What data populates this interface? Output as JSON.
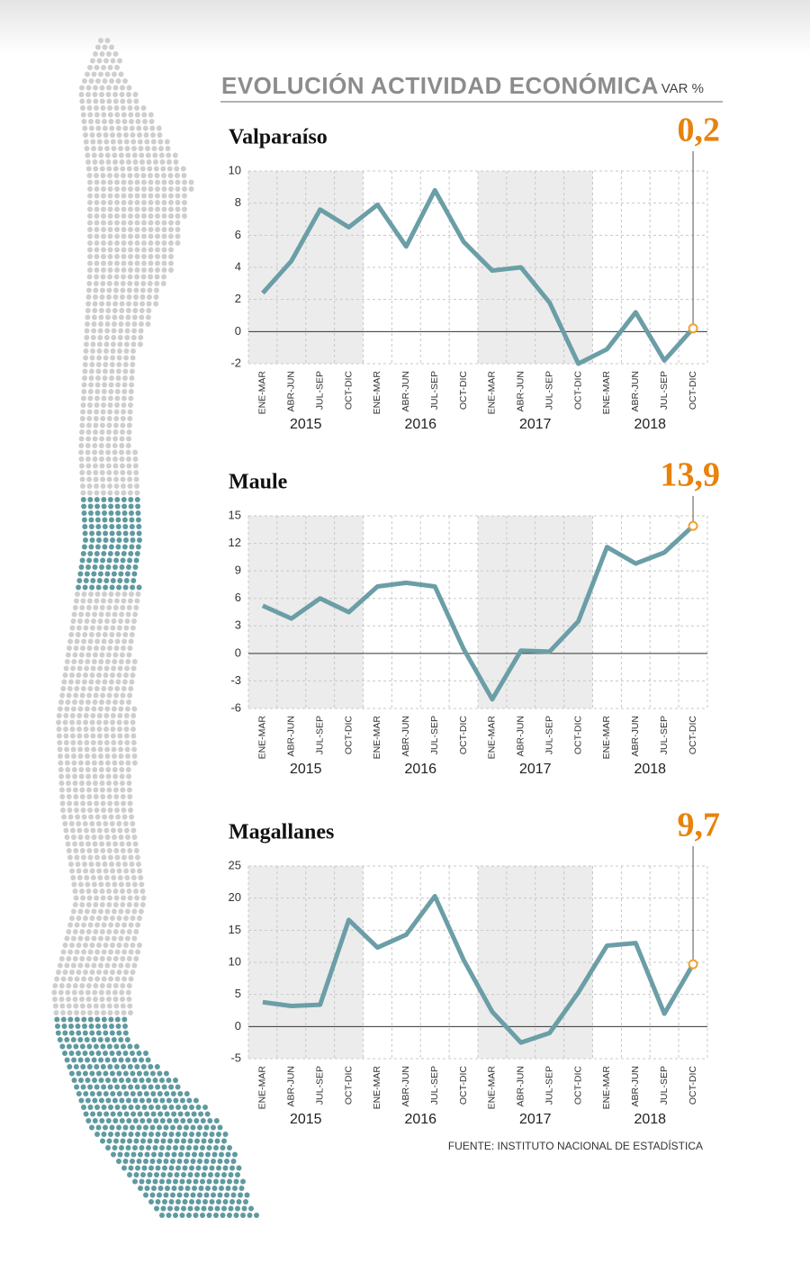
{
  "title": "EVOLUCIÓN ACTIVIDAD ECONÓMICA",
  "unit": "VAR %",
  "source": "FUENTE: INSTITUTO NACIONAL DE ESTADÍSTICA",
  "chart_data": [
    {
      "type": "line",
      "title": "Valparaíso",
      "categories": [
        "ENE-MAR",
        "ABR-JUN",
        "JUL-SEP",
        "OCT-DIC",
        "ENE-MAR",
        "ABR-JUN",
        "JUL-SEP",
        "OCT-DIC",
        "ENE-MAR",
        "ABR-JUN",
        "JUL-SEP",
        "OCT-DIC",
        "ENE-MAR",
        "ABR-JUN",
        "JUL-SEP",
        "OCT-DIC"
      ],
      "x_groups": [
        "2015",
        "2016",
        "2017",
        "2018"
      ],
      "series": [
        {
          "color": "#6b9ea6",
          "values": [
            2.4,
            4.4,
            7.6,
            6.5,
            7.9,
            5.3,
            8.8,
            5.6,
            3.8,
            4.0,
            1.8,
            -2.0,
            -1.1,
            1.2,
            -1.8,
            0.2
          ],
          "value_labels": [
            null,
            null,
            null,
            null,
            null,
            null,
            null,
            null,
            null,
            null,
            null,
            null,
            null,
            null,
            null,
            "0,2"
          ]
        }
      ],
      "ylim": [
        -2,
        10
      ],
      "yticks": [
        -2,
        0,
        2,
        4,
        6,
        8,
        10
      ],
      "grid": true
    },
    {
      "type": "line",
      "title": "Maule",
      "categories": [
        "ENE-MAR",
        "ABR-JUN",
        "JUL-SEP",
        "OCT-DIC",
        "ENE-MAR",
        "ABR-JUN",
        "JUL-SEP",
        "OCT-DIC",
        "ENE-MAR",
        "ABR-JUN",
        "JUL-SEP",
        "OCT-DIC",
        "ENE-MAR",
        "ABR-JUN",
        "JUL-SEP",
        "OCT-DIC"
      ],
      "x_groups": [
        "2015",
        "2016",
        "2017",
        "2018"
      ],
      "series": [
        {
          "color": "#6b9ea6",
          "values": [
            5.2,
            3.8,
            6.0,
            4.5,
            7.3,
            7.7,
            7.3,
            0.5,
            -5.0,
            0.3,
            0.2,
            3.5,
            11.6,
            9.8,
            11.0,
            13.9
          ],
          "value_labels": [
            null,
            null,
            null,
            null,
            null,
            null,
            null,
            null,
            null,
            null,
            null,
            null,
            null,
            null,
            null,
            "13,9"
          ]
        }
      ],
      "ylim": [
        -6,
        15
      ],
      "yticks": [
        -6,
        -3,
        0,
        3,
        6,
        9,
        12,
        15
      ],
      "grid": true
    },
    {
      "type": "line",
      "title": "Magallanes",
      "categories": [
        "ENE-MAR",
        "ABR-JUN",
        "JUL-SEP",
        "OCT-DIC",
        "ENE-MAR",
        "ABR-JUN",
        "JUL-SEP",
        "OCT-DIC",
        "ENE-MAR",
        "ABR-JUN",
        "JUL-SEP",
        "OCT-DIC",
        "ENE-MAR",
        "ABR-JUN",
        "JUL-SEP",
        "OCT-DIC"
      ],
      "x_groups": [
        "2015",
        "2016",
        "2017",
        "2018"
      ],
      "series": [
        {
          "color": "#6b9ea6",
          "values": [
            3.8,
            3.2,
            3.4,
            16.6,
            12.3,
            14.3,
            20.3,
            10.4,
            2.3,
            -2.5,
            -1.0,
            5.3,
            12.6,
            13.0,
            2.0,
            9.7
          ],
          "value_labels": [
            null,
            null,
            null,
            null,
            null,
            null,
            null,
            null,
            null,
            null,
            null,
            null,
            null,
            null,
            null,
            "9,7"
          ]
        }
      ],
      "ylim": [
        -5,
        25
      ],
      "yticks": [
        -5,
        0,
        5,
        10,
        15,
        20,
        25
      ],
      "grid": true
    }
  ]
}
